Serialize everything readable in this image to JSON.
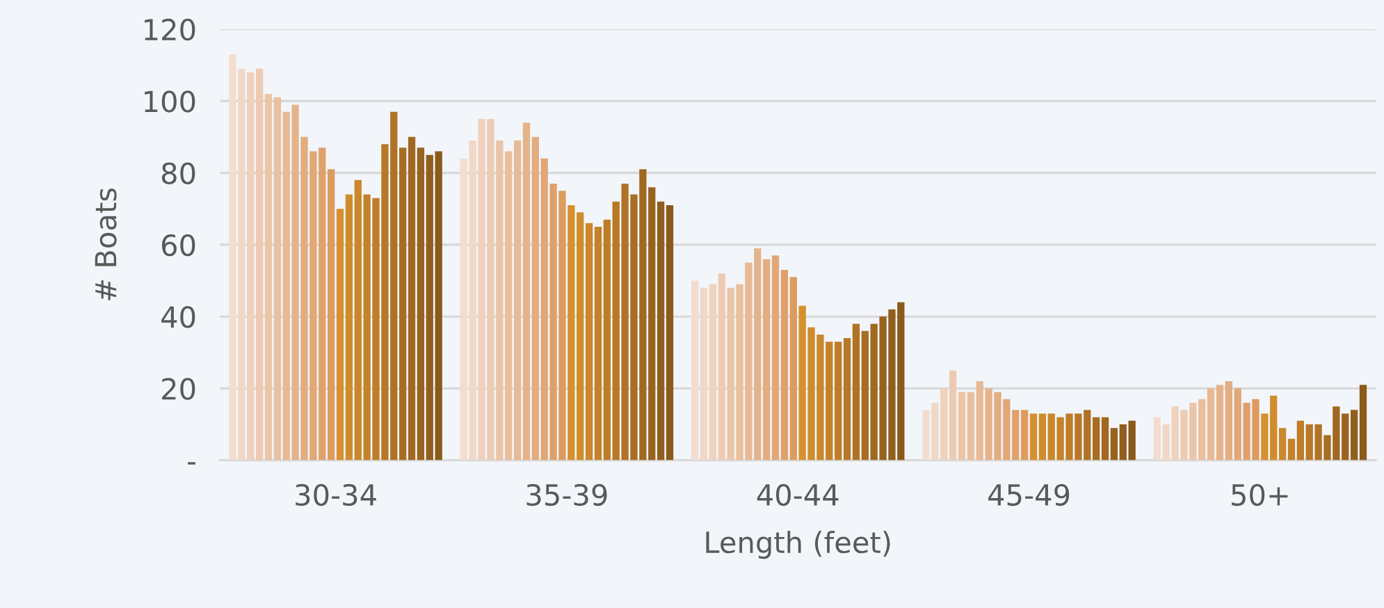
{
  "chart_data": {
    "type": "bar",
    "xlabel": "Length (feet)",
    "ylabel": "# Boats",
    "categories": [
      "30-34",
      "35-39",
      "40-44",
      "45-49",
      "50+"
    ],
    "ylim": [
      0,
      120
    ],
    "yticks": [
      {
        "value": 0,
        "label": "-"
      },
      20,
      40,
      60,
      80,
      100,
      120
    ],
    "grid": "y",
    "series": [
      {
        "color": "#f3ddd0",
        "values": [
          113,
          84,
          50,
          14,
          12
        ]
      },
      {
        "color": "#f1d7c6",
        "values": [
          109,
          89,
          48,
          16,
          10
        ]
      },
      {
        "color": "#efd1bc",
        "values": [
          108,
          95,
          49,
          20,
          15
        ]
      },
      {
        "color": "#edcbb2",
        "values": [
          109,
          95,
          52,
          25,
          14
        ]
      },
      {
        "color": "#ebc5a8",
        "values": [
          102,
          89,
          48,
          19,
          16
        ]
      },
      {
        "color": "#e9bf9e",
        "values": [
          101,
          86,
          49,
          19,
          17
        ]
      },
      {
        "color": "#e7b994",
        "values": [
          97,
          89,
          55,
          22,
          20
        ]
      },
      {
        "color": "#e5b38a",
        "values": [
          99,
          94,
          59,
          20,
          21
        ]
      },
      {
        "color": "#e3ad80",
        "values": [
          90,
          90,
          56,
          19,
          22
        ]
      },
      {
        "color": "#e1a776",
        "values": [
          86,
          84,
          57,
          17,
          20
        ]
      },
      {
        "color": "#dfa16c",
        "values": [
          87,
          77,
          53,
          14,
          16
        ]
      },
      {
        "color": "#dd9b5e",
        "values": [
          81,
          75,
          51,
          14,
          17
        ]
      },
      {
        "color": "#d6902f",
        "values": [
          70,
          71,
          43,
          13,
          13
        ]
      },
      {
        "color": "#d08c2c",
        "values": [
          74,
          69,
          37,
          13,
          18
        ]
      },
      {
        "color": "#ca872b",
        "values": [
          78,
          66,
          35,
          13,
          9
        ]
      },
      {
        "color": "#c4822a",
        "values": [
          74,
          65,
          33,
          12,
          6
        ]
      },
      {
        "color": "#be7d28",
        "values": [
          73,
          67,
          33,
          13,
          11
        ]
      },
      {
        "color": "#b87827",
        "values": [
          88,
          72,
          34,
          13,
          10
        ]
      },
      {
        "color": "#b07325",
        "values": [
          97,
          77,
          38,
          14,
          10
        ]
      },
      {
        "color": "#a86d23",
        "values": [
          87,
          74,
          36,
          12,
          7
        ]
      },
      {
        "color": "#a06821",
        "values": [
          90,
          81,
          38,
          12,
          15
        ]
      },
      {
        "color": "#98621f",
        "values": [
          87,
          76,
          40,
          9,
          13
        ]
      },
      {
        "color": "#915e1d",
        "values": [
          85,
          72,
          42,
          10,
          14
        ]
      },
      {
        "color": "#8a5a1b",
        "values": [
          86,
          71,
          44,
          11,
          21
        ]
      }
    ]
  }
}
